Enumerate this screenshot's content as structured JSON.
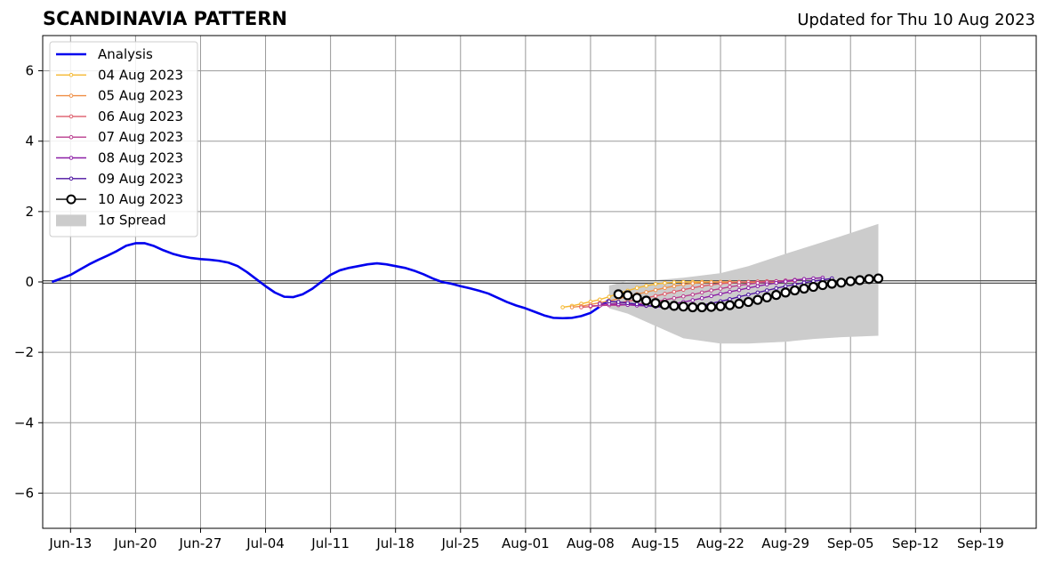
{
  "chart_data": {
    "type": "line",
    "title": "SCANDINAVIA PATTERN",
    "subtitle": "Updated for Thu 10 Aug 2023",
    "xlabel": "",
    "ylabel": "",
    "x_range": [
      "2023-06-10",
      "2023-09-25"
    ],
    "ylim": [
      -7,
      7
    ],
    "grid": true,
    "legend_position": "top-left",
    "x_tick_labels": [
      {
        "date": "2023-06-13",
        "label": "Jun-13"
      },
      {
        "date": "2023-06-20",
        "label": "Jun-20"
      },
      {
        "date": "2023-06-27",
        "label": "Jun-27"
      },
      {
        "date": "2023-07-04",
        "label": "Jul-04"
      },
      {
        "date": "2023-07-11",
        "label": "Jul-11"
      },
      {
        "date": "2023-07-18",
        "label": "Jul-18"
      },
      {
        "date": "2023-07-25",
        "label": "Jul-25"
      },
      {
        "date": "2023-08-01",
        "label": "Aug-01"
      },
      {
        "date": "2023-08-08",
        "label": "Aug-08"
      },
      {
        "date": "2023-08-15",
        "label": "Aug-15"
      },
      {
        "date": "2023-08-22",
        "label": "Aug-22"
      },
      {
        "date": "2023-08-29",
        "label": "Aug-29"
      },
      {
        "date": "2023-09-05",
        "label": "Sep-05"
      },
      {
        "date": "2023-09-12",
        "label": "Sep-12"
      },
      {
        "date": "2023-09-19",
        "label": "Sep-19"
      }
    ],
    "y_ticks": [
      {
        "value": 6,
        "label": "6"
      },
      {
        "value": 4,
        "label": "4"
      },
      {
        "value": 2,
        "label": "2"
      },
      {
        "value": 0,
        "label": "0"
      },
      {
        "value": -2,
        "label": "−2"
      },
      {
        "value": -4,
        "label": "−4"
      },
      {
        "value": -6,
        "label": "−6"
      }
    ],
    "analysis": {
      "name": "Analysis",
      "color": "#0000ee",
      "points": [
        [
          "2023-06-11",
          0.0
        ],
        [
          "2023-06-12",
          0.1
        ],
        [
          "2023-06-13",
          0.2
        ],
        [
          "2023-06-14",
          0.35
        ],
        [
          "2023-06-15",
          0.5
        ],
        [
          "2023-06-16",
          0.63
        ],
        [
          "2023-06-17",
          0.75
        ],
        [
          "2023-06-18",
          0.88
        ],
        [
          "2023-06-19",
          1.03
        ],
        [
          "2023-06-20",
          1.1
        ],
        [
          "2023-06-21",
          1.1
        ],
        [
          "2023-06-22",
          1.02
        ],
        [
          "2023-06-23",
          0.9
        ],
        [
          "2023-06-24",
          0.8
        ],
        [
          "2023-06-25",
          0.73
        ],
        [
          "2023-06-26",
          0.68
        ],
        [
          "2023-06-27",
          0.65
        ],
        [
          "2023-06-28",
          0.63
        ],
        [
          "2023-06-29",
          0.6
        ],
        [
          "2023-06-30",
          0.55
        ],
        [
          "2023-07-01",
          0.45
        ],
        [
          "2023-07-02",
          0.28
        ],
        [
          "2023-07-03",
          0.08
        ],
        [
          "2023-07-04",
          -0.12
        ],
        [
          "2023-07-05",
          -0.3
        ],
        [
          "2023-07-06",
          -0.42
        ],
        [
          "2023-07-07",
          -0.43
        ],
        [
          "2023-07-08",
          -0.35
        ],
        [
          "2023-07-09",
          -0.2
        ],
        [
          "2023-07-10",
          0.0
        ],
        [
          "2023-07-11",
          0.2
        ],
        [
          "2023-07-12",
          0.33
        ],
        [
          "2023-07-13",
          0.4
        ],
        [
          "2023-07-14",
          0.45
        ],
        [
          "2023-07-15",
          0.5
        ],
        [
          "2023-07-16",
          0.53
        ],
        [
          "2023-07-17",
          0.5
        ],
        [
          "2023-07-18",
          0.45
        ],
        [
          "2023-07-19",
          0.4
        ],
        [
          "2023-07-20",
          0.32
        ],
        [
          "2023-07-21",
          0.22
        ],
        [
          "2023-07-22",
          0.1
        ],
        [
          "2023-07-23",
          0.0
        ],
        [
          "2023-07-24",
          -0.05
        ],
        [
          "2023-07-25",
          -0.12
        ],
        [
          "2023-07-26",
          -0.18
        ],
        [
          "2023-07-27",
          -0.25
        ],
        [
          "2023-07-28",
          -0.33
        ],
        [
          "2023-07-29",
          -0.45
        ],
        [
          "2023-07-30",
          -0.57
        ],
        [
          "2023-07-31",
          -0.67
        ],
        [
          "2023-08-01",
          -0.75
        ],
        [
          "2023-08-02",
          -0.85
        ],
        [
          "2023-08-03",
          -0.95
        ],
        [
          "2023-08-04",
          -1.02
        ],
        [
          "2023-08-05",
          -1.03
        ],
        [
          "2023-08-06",
          -1.02
        ],
        [
          "2023-08-07",
          -0.97
        ],
        [
          "2023-08-08",
          -0.88
        ],
        [
          "2023-08-09",
          -0.7
        ],
        [
          "2023-08-10",
          -0.5
        ]
      ]
    },
    "spread": {
      "name": "1σ Spread",
      "color": "#cccccc",
      "upper": [
        [
          "2023-08-10",
          -0.1
        ],
        [
          "2023-08-12",
          0.02
        ],
        [
          "2023-08-15",
          0.05
        ],
        [
          "2023-08-18",
          0.12
        ],
        [
          "2023-08-22",
          0.25
        ],
        [
          "2023-08-25",
          0.45
        ],
        [
          "2023-08-29",
          0.8
        ],
        [
          "2023-09-01",
          1.05
        ],
        [
          "2023-09-04",
          1.3
        ],
        [
          "2023-09-08",
          1.65
        ]
      ],
      "lower": [
        [
          "2023-08-10",
          -0.75
        ],
        [
          "2023-08-12",
          -0.9
        ],
        [
          "2023-08-15",
          -1.25
        ],
        [
          "2023-08-18",
          -1.6
        ],
        [
          "2023-08-22",
          -1.75
        ],
        [
          "2023-08-25",
          -1.75
        ],
        [
          "2023-08-29",
          -1.7
        ],
        [
          "2023-09-01",
          -1.62
        ],
        [
          "2023-09-04",
          -1.57
        ],
        [
          "2023-09-08",
          -1.53
        ]
      ]
    },
    "forecasts": [
      {
        "name": "04 Aug 2023",
        "color": "#f5b830",
        "start": "2023-08-05",
        "values": [
          -0.72,
          -0.68,
          -0.62,
          -0.56,
          -0.5,
          -0.42,
          -0.33,
          -0.25,
          -0.17,
          -0.11,
          -0.06,
          -0.03,
          -0.01,
          0.0,
          0.0,
          0.0,
          0.0,
          0.0,
          -0.01,
          -0.01,
          -0.01,
          -0.01,
          -0.01,
          -0.01
        ]
      },
      {
        "name": "05 Aug 2023",
        "color": "#ef8e45",
        "start": "2023-08-06",
        "values": [
          -0.72,
          -0.69,
          -0.64,
          -0.59,
          -0.54,
          -0.48,
          -0.41,
          -0.35,
          -0.29,
          -0.23,
          -0.17,
          -0.12,
          -0.07,
          -0.04,
          -0.02,
          -0.01,
          0.0,
          0.0,
          0.0,
          0.0,
          0.01,
          0.01,
          0.01,
          0.01
        ]
      },
      {
        "name": "06 Aug 2023",
        "color": "#dd5c6a",
        "start": "2023-08-07",
        "values": [
          -0.72,
          -0.7,
          -0.67,
          -0.64,
          -0.6,
          -0.55,
          -0.5,
          -0.45,
          -0.4,
          -0.34,
          -0.28,
          -0.22,
          -0.17,
          -0.12,
          -0.08,
          -0.05,
          -0.03,
          -0.01,
          0.0,
          0.01,
          0.02,
          0.02,
          0.02,
          0.02
        ]
      },
      {
        "name": "07 Aug 2023",
        "color": "#b93c8e",
        "start": "2023-08-08",
        "values": [
          -0.68,
          -0.67,
          -0.66,
          -0.66,
          -0.65,
          -0.63,
          -0.6,
          -0.56,
          -0.51,
          -0.46,
          -0.41,
          -0.36,
          -0.3,
          -0.24,
          -0.19,
          -0.14,
          -0.1,
          -0.06,
          -0.03,
          -0.01,
          0.02,
          0.04,
          0.06,
          0.08
        ]
      },
      {
        "name": "08 Aug 2023",
        "color": "#8c1fa6",
        "start": "2023-08-09",
        "values": [
          -0.62,
          -0.62,
          -0.63,
          -0.65,
          -0.67,
          -0.68,
          -0.68,
          -0.66,
          -0.62,
          -0.57,
          -0.52,
          -0.46,
          -0.4,
          -0.34,
          -0.28,
          -0.23,
          -0.17,
          -0.12,
          -0.07,
          -0.03,
          0.01,
          0.05,
          0.08,
          0.1,
          0.12
        ]
      },
      {
        "name": "09 Aug 2023",
        "color": "#4c12a0",
        "start": "2023-08-10",
        "values": [
          -0.55,
          -0.57,
          -0.6,
          -0.63,
          -0.67,
          -0.7,
          -0.72,
          -0.73,
          -0.72,
          -0.7,
          -0.66,
          -0.61,
          -0.55,
          -0.49,
          -0.42,
          -0.36,
          -0.3,
          -0.24,
          -0.18,
          -0.12,
          -0.07,
          -0.02,
          0.02,
          0.06,
          0.1
        ]
      }
    ],
    "current_forecast": {
      "name": "10 Aug 2023",
      "color": "#000000",
      "start": "2023-08-11",
      "values": [
        -0.35,
        -0.38,
        -0.45,
        -0.53,
        -0.6,
        -0.65,
        -0.68,
        -0.7,
        -0.72,
        -0.72,
        -0.71,
        -0.69,
        -0.66,
        -0.62,
        -0.57,
        -0.51,
        -0.44,
        -0.37,
        -0.3,
        -0.24,
        -0.19,
        -0.14,
        -0.09,
        -0.05,
        -0.02,
        0.02,
        0.05,
        0.08,
        0.1
      ]
    }
  }
}
